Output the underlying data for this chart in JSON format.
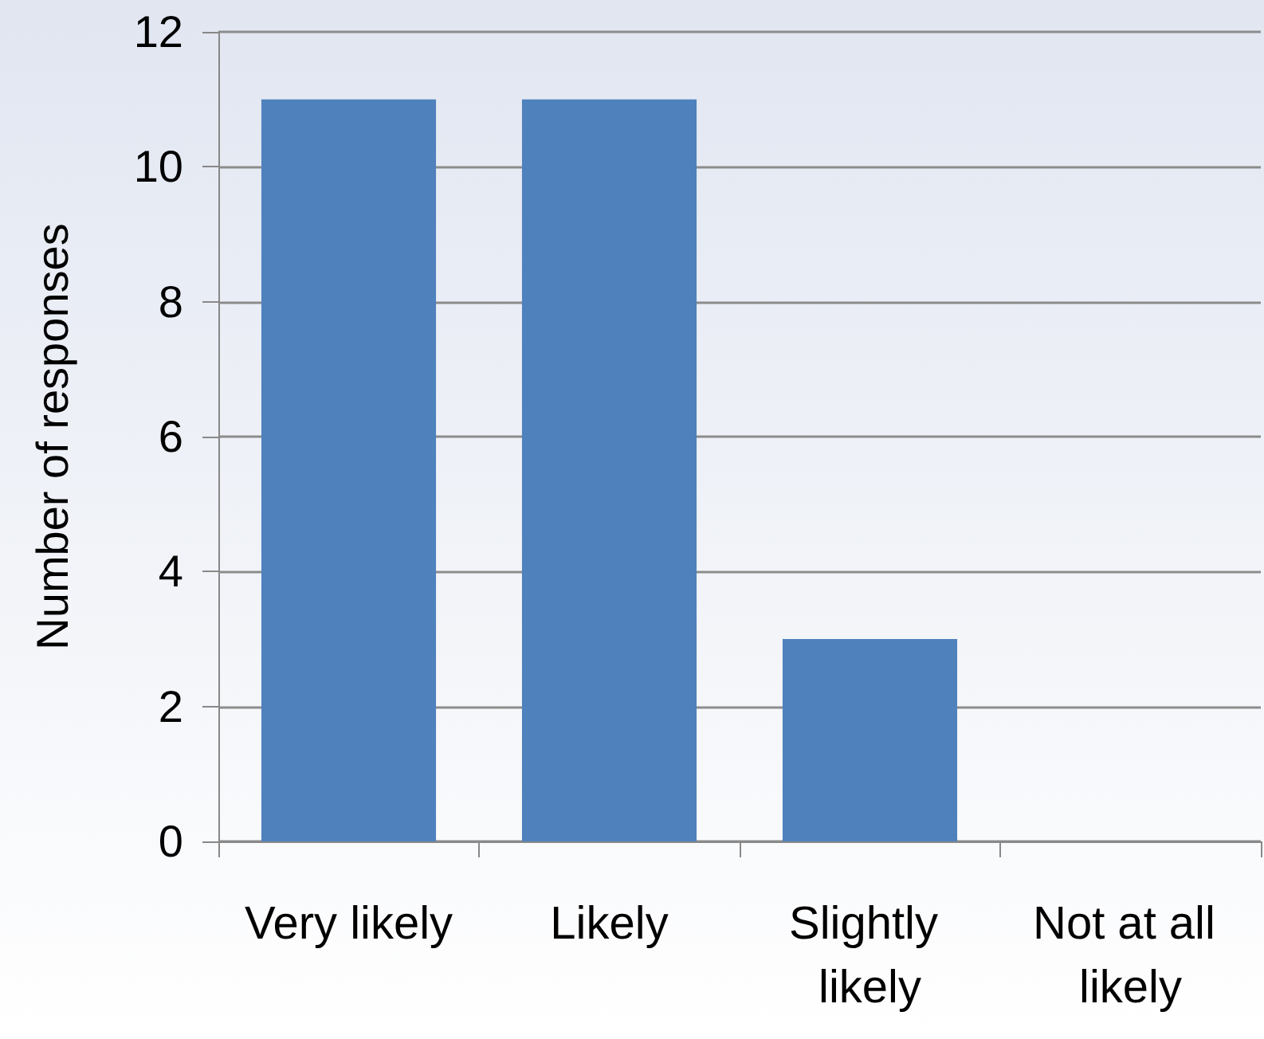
{
  "chart_data": {
    "type": "bar",
    "ylabel": "Number of responses",
    "categories": [
      "Very likely",
      "Likely",
      "Slightly likely",
      "Not at all likely"
    ],
    "values": [
      11,
      11,
      3,
      0
    ],
    "color": "#4f81bd",
    "ylim": [
      0,
      12
    ],
    "yticks": [
      0,
      2,
      4,
      6,
      8,
      10,
      12
    ],
    "grid": "y"
  }
}
